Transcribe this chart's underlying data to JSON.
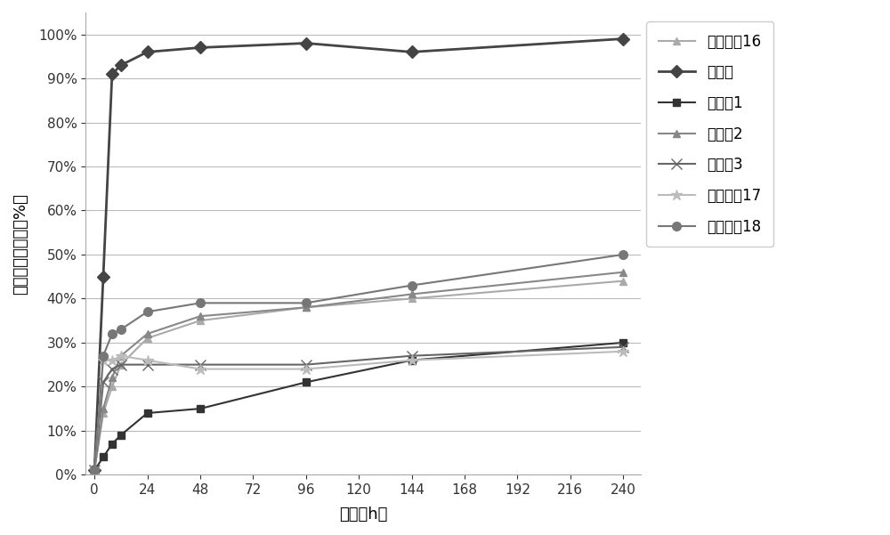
{
  "xlabel": "时间（h）",
  "ylabel": "累积溶出百分比（%）",
  "x_ticks": [
    0,
    24,
    48,
    72,
    96,
    120,
    144,
    168,
    192,
    216,
    240
  ],
  "ylim": [
    0,
    1.05
  ],
  "xlim": [
    -4,
    248
  ],
  "series": [
    {
      "name": "载药颗剠16",
      "color": "#aaaaaa",
      "marker": "^",
      "markersize": 6,
      "linewidth": 1.5,
      "x": [
        0,
        4,
        8,
        12,
        24,
        48,
        96,
        144,
        240
      ],
      "y": [
        0.01,
        0.14,
        0.2,
        0.25,
        0.31,
        0.35,
        0.38,
        0.4,
        0.44
      ]
    },
    {
      "name": "对照组",
      "color": "#444444",
      "marker": "D",
      "markersize": 7,
      "linewidth": 2.0,
      "x": [
        0,
        4,
        8,
        12,
        24,
        48,
        96,
        144,
        240
      ],
      "y": [
        0.01,
        0.45,
        0.91,
        0.93,
        0.96,
        0.97,
        0.98,
        0.96,
        0.99
      ]
    },
    {
      "name": "实施例1",
      "color": "#333333",
      "marker": "s",
      "markersize": 6,
      "linewidth": 1.5,
      "x": [
        0,
        4,
        8,
        12,
        24,
        48,
        96,
        144,
        240
      ],
      "y": [
        0.01,
        0.04,
        0.07,
        0.09,
        0.14,
        0.15,
        0.21,
        0.26,
        0.3
      ]
    },
    {
      "name": "实施例2",
      "color": "#888888",
      "marker": "^",
      "markersize": 6,
      "linewidth": 1.5,
      "x": [
        0,
        4,
        8,
        12,
        24,
        48,
        96,
        144,
        240
      ],
      "y": [
        0.01,
        0.15,
        0.22,
        0.27,
        0.32,
        0.36,
        0.38,
        0.41,
        0.46
      ]
    },
    {
      "name": "实施例3",
      "color": "#666666",
      "marker": "x",
      "markersize": 8,
      "linewidth": 1.5,
      "x": [
        0,
        4,
        8,
        12,
        24,
        48,
        96,
        144,
        240
      ],
      "y": [
        0.01,
        0.21,
        0.24,
        0.25,
        0.25,
        0.25,
        0.25,
        0.27,
        0.29
      ]
    },
    {
      "name": "载药颗剠17",
      "color": "#bbbbbb",
      "marker": "*",
      "markersize": 9,
      "linewidth": 1.5,
      "x": [
        0,
        4,
        8,
        12,
        24,
        48,
        96,
        144,
        240
      ],
      "y": [
        0.01,
        0.26,
        0.26,
        0.27,
        0.26,
        0.24,
        0.24,
        0.26,
        0.28
      ]
    },
    {
      "name": "载药颗剠18",
      "color": "#777777",
      "marker": "o",
      "markersize": 7,
      "linewidth": 1.5,
      "x": [
        0,
        4,
        8,
        12,
        24,
        48,
        96,
        144,
        240
      ],
      "y": [
        0.01,
        0.27,
        0.32,
        0.33,
        0.37,
        0.39,
        0.39,
        0.43,
        0.5
      ]
    }
  ],
  "background_color": "#ffffff",
  "grid_color": "#bbbbbb",
  "legend_fontsize": 12,
  "axis_fontsize": 13,
  "tick_fontsize": 11
}
